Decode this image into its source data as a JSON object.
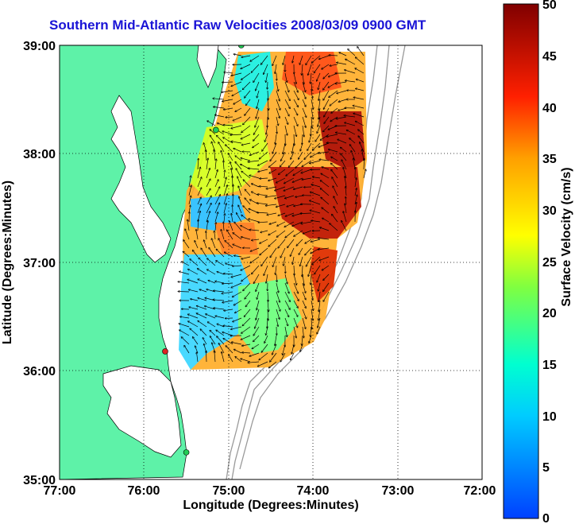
{
  "title": "Southern Mid-Atlantic Raw Velocities 2008/03/09 0900 GMT",
  "x_axis": {
    "label": "Longitude (Degrees:Minutes)",
    "ticks": [
      "77:00",
      "76:00",
      "75:00",
      "74:00",
      "73:00",
      "72:00"
    ]
  },
  "y_axis": {
    "label": "Latitude (Degrees:Minutes)",
    "ticks": [
      "39:00",
      "38:00",
      "37:00",
      "36:00",
      "35:00"
    ]
  },
  "colorbar": {
    "label": "Surface Velocity (cm/s)",
    "ticks": [
      "50",
      "45",
      "40",
      "35",
      "30",
      "25",
      "20",
      "15",
      "10",
      "5",
      "0"
    ],
    "min": 0,
    "max": 50
  },
  "colors": {
    "title": "#1a14d6",
    "land": "#5ef2a8",
    "station": "#22cc55",
    "station_alt": "#dd2222"
  },
  "map": {
    "lon_range": [
      -77,
      -72
    ],
    "lat_range": [
      35,
      39
    ],
    "grid": true,
    "stations": [
      {
        "lon": -74.85,
        "lat": 39.0,
        "type": "normal"
      },
      {
        "lon": -75.15,
        "lat": 38.22,
        "type": "normal"
      },
      {
        "lon": -75.75,
        "lat": 36.18,
        "type": "alt"
      },
      {
        "lon": -75.5,
        "lat": 35.25,
        "type": "normal"
      }
    ]
  }
}
